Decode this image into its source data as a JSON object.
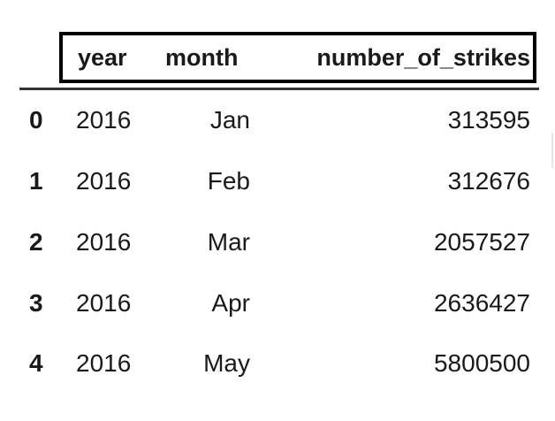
{
  "table": {
    "columns": [
      "year",
      "month",
      "number_of_strikes"
    ],
    "rows": [
      {
        "index": "0",
        "year": "2016",
        "month": "Jan",
        "number_of_strikes": "313595"
      },
      {
        "index": "1",
        "year": "2016",
        "month": "Feb",
        "number_of_strikes": "312676"
      },
      {
        "index": "2",
        "year": "2016",
        "month": "Mar",
        "number_of_strikes": "2057527"
      },
      {
        "index": "3",
        "year": "2016",
        "month": "Apr",
        "number_of_strikes": "2636427"
      },
      {
        "index": "4",
        "year": "2016",
        "month": "May",
        "number_of_strikes": "5800500"
      }
    ]
  }
}
